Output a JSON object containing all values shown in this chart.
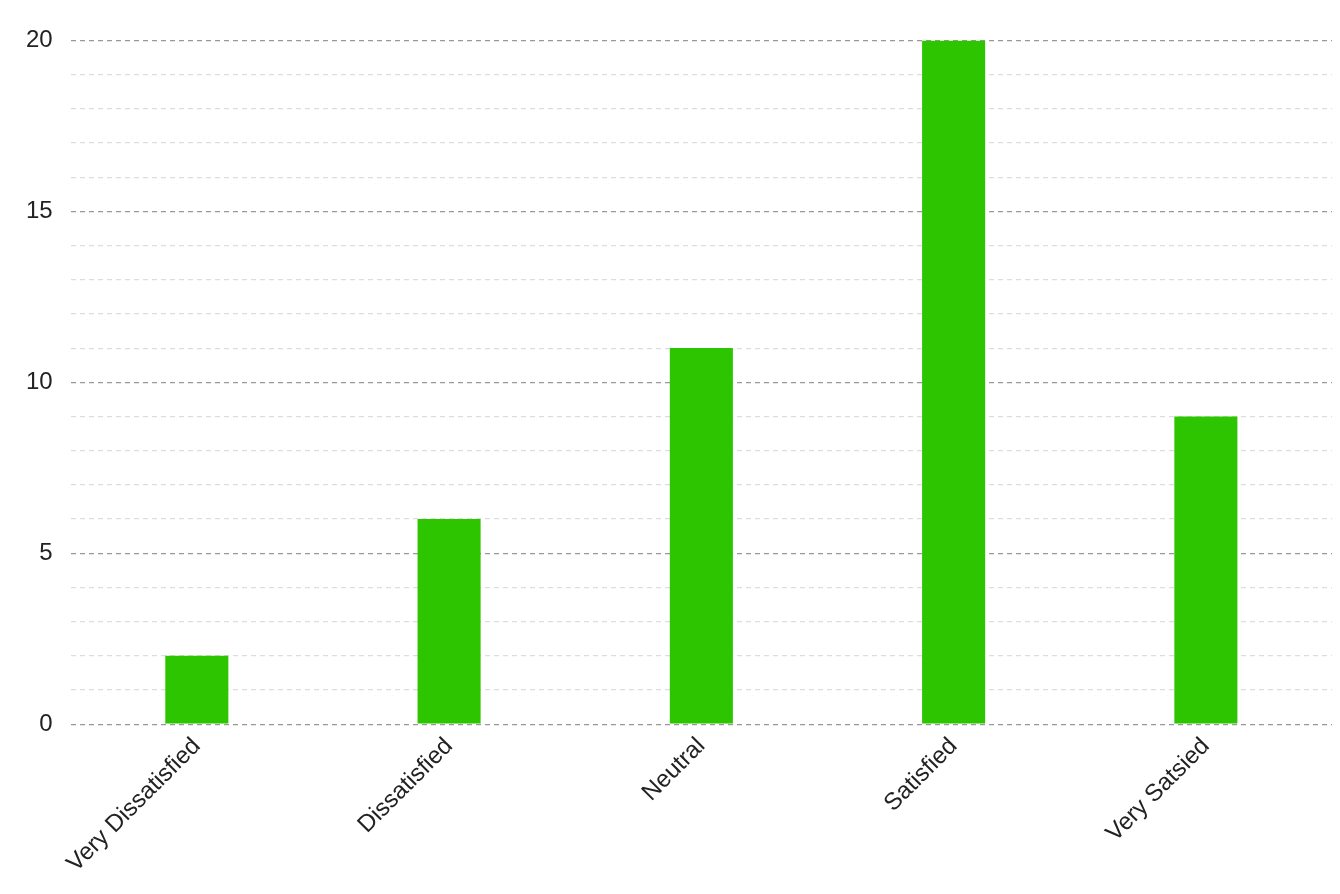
{
  "chart_data": {
    "type": "bar",
    "categories": [
      "Very Dissatisfied",
      "Dissatisfied",
      "Neutral",
      "Satisfied",
      "Very Satsied"
    ],
    "values": [
      2,
      6,
      11,
      20,
      9
    ],
    "color": "#2dc500",
    "ylim": [
      0,
      20
    ],
    "yticks": [
      0,
      {
        "value": 1,
        "label": null
      },
      {
        "value": 2,
        "label": null
      },
      {
        "value": 3,
        "label": null
      },
      {
        "value": 4,
        "label": null
      },
      5,
      {
        "value": 6,
        "label": null
      },
      {
        "value": 7,
        "label": null
      },
      {
        "value": 8,
        "label": null
      },
      {
        "value": 9,
        "label": null
      },
      10,
      {
        "value": 11,
        "label": null
      },
      {
        "value": 12,
        "label": null
      },
      {
        "value": 13,
        "label": null
      },
      {
        "value": 14,
        "label": null
      },
      15,
      {
        "value": 16,
        "label": null
      },
      {
        "value": 17,
        "label": null
      },
      {
        "value": 18,
        "label": null
      },
      {
        "value": 19,
        "label": null
      },
      20
    ],
    "grid": "y",
    "legend": false
  }
}
